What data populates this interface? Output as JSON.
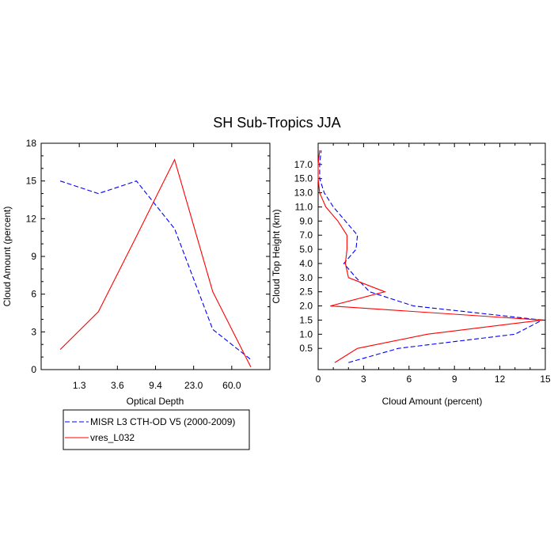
{
  "title": "SH Sub-Tropics JJA",
  "series_names": [
    "MISR L3 CTH-OD V5 (2000-2009)",
    "vres_L032"
  ],
  "series_colors": [
    "#0000ff",
    "#ff0000"
  ],
  "chart_data": [
    {
      "type": "line",
      "xlabel": "Optical Depth",
      "ylabel": "Cloud Amount (percent)",
      "xticklabels": [
        "1.3",
        "3.6",
        "9.4",
        "23.0",
        "60.0"
      ],
      "yticks": [
        0,
        3,
        6,
        9,
        12,
        15,
        18
      ],
      "ylim": [
        0,
        18
      ],
      "x": [
        0.5,
        1.5,
        2.5,
        3.5,
        4.5,
        5.5
      ],
      "series": [
        {
          "name": "MISR L3 CTH-OD V5 (2000-2009)",
          "style": "dashed",
          "values": [
            15.0,
            14.0,
            15.0,
            11.2,
            3.2,
            0.8
          ]
        },
        {
          "name": "vres_L032",
          "style": "solid",
          "values": [
            1.6,
            4.6,
            10.6,
            16.7,
            6.2,
            0.2
          ]
        }
      ]
    },
    {
      "type": "line",
      "xlabel": "Cloud Amount (percent)",
      "ylabel": "Cloud Top Height (km)",
      "xticks": [
        0,
        3,
        6,
        9,
        12,
        15
      ],
      "xlim": [
        0,
        15
      ],
      "yticklabels": [
        "0.5",
        "1.0",
        "1.5",
        "2.0",
        "2.5",
        "3.0",
        "4.0",
        "5.0",
        "7.0",
        "9.0",
        "11.0",
        "13.0",
        "15.0",
        "17.0"
      ],
      "levels": [
        0,
        1,
        2,
        3,
        4,
        5,
        6,
        7,
        8,
        9,
        10,
        11,
        12,
        13,
        14,
        15
      ],
      "series": [
        {
          "name": "MISR L3 CTH-OD V5 (2000-2009)",
          "style": "dashed",
          "values": [
            2.0,
            5.3,
            13.0,
            14.8,
            6.3,
            3.4,
            2.5,
            1.7,
            2.5,
            2.6,
            1.8,
            1.0,
            0.4,
            0.1,
            0.1,
            0.2
          ]
        },
        {
          "name": "vres_L032",
          "style": "solid",
          "values": [
            1.1,
            2.6,
            7.2,
            14.8,
            0.8,
            4.4,
            2.0,
            1.8,
            1.9,
            1.9,
            1.3,
            0.5,
            0.1,
            0.0,
            0.0,
            0.1
          ]
        }
      ]
    }
  ]
}
